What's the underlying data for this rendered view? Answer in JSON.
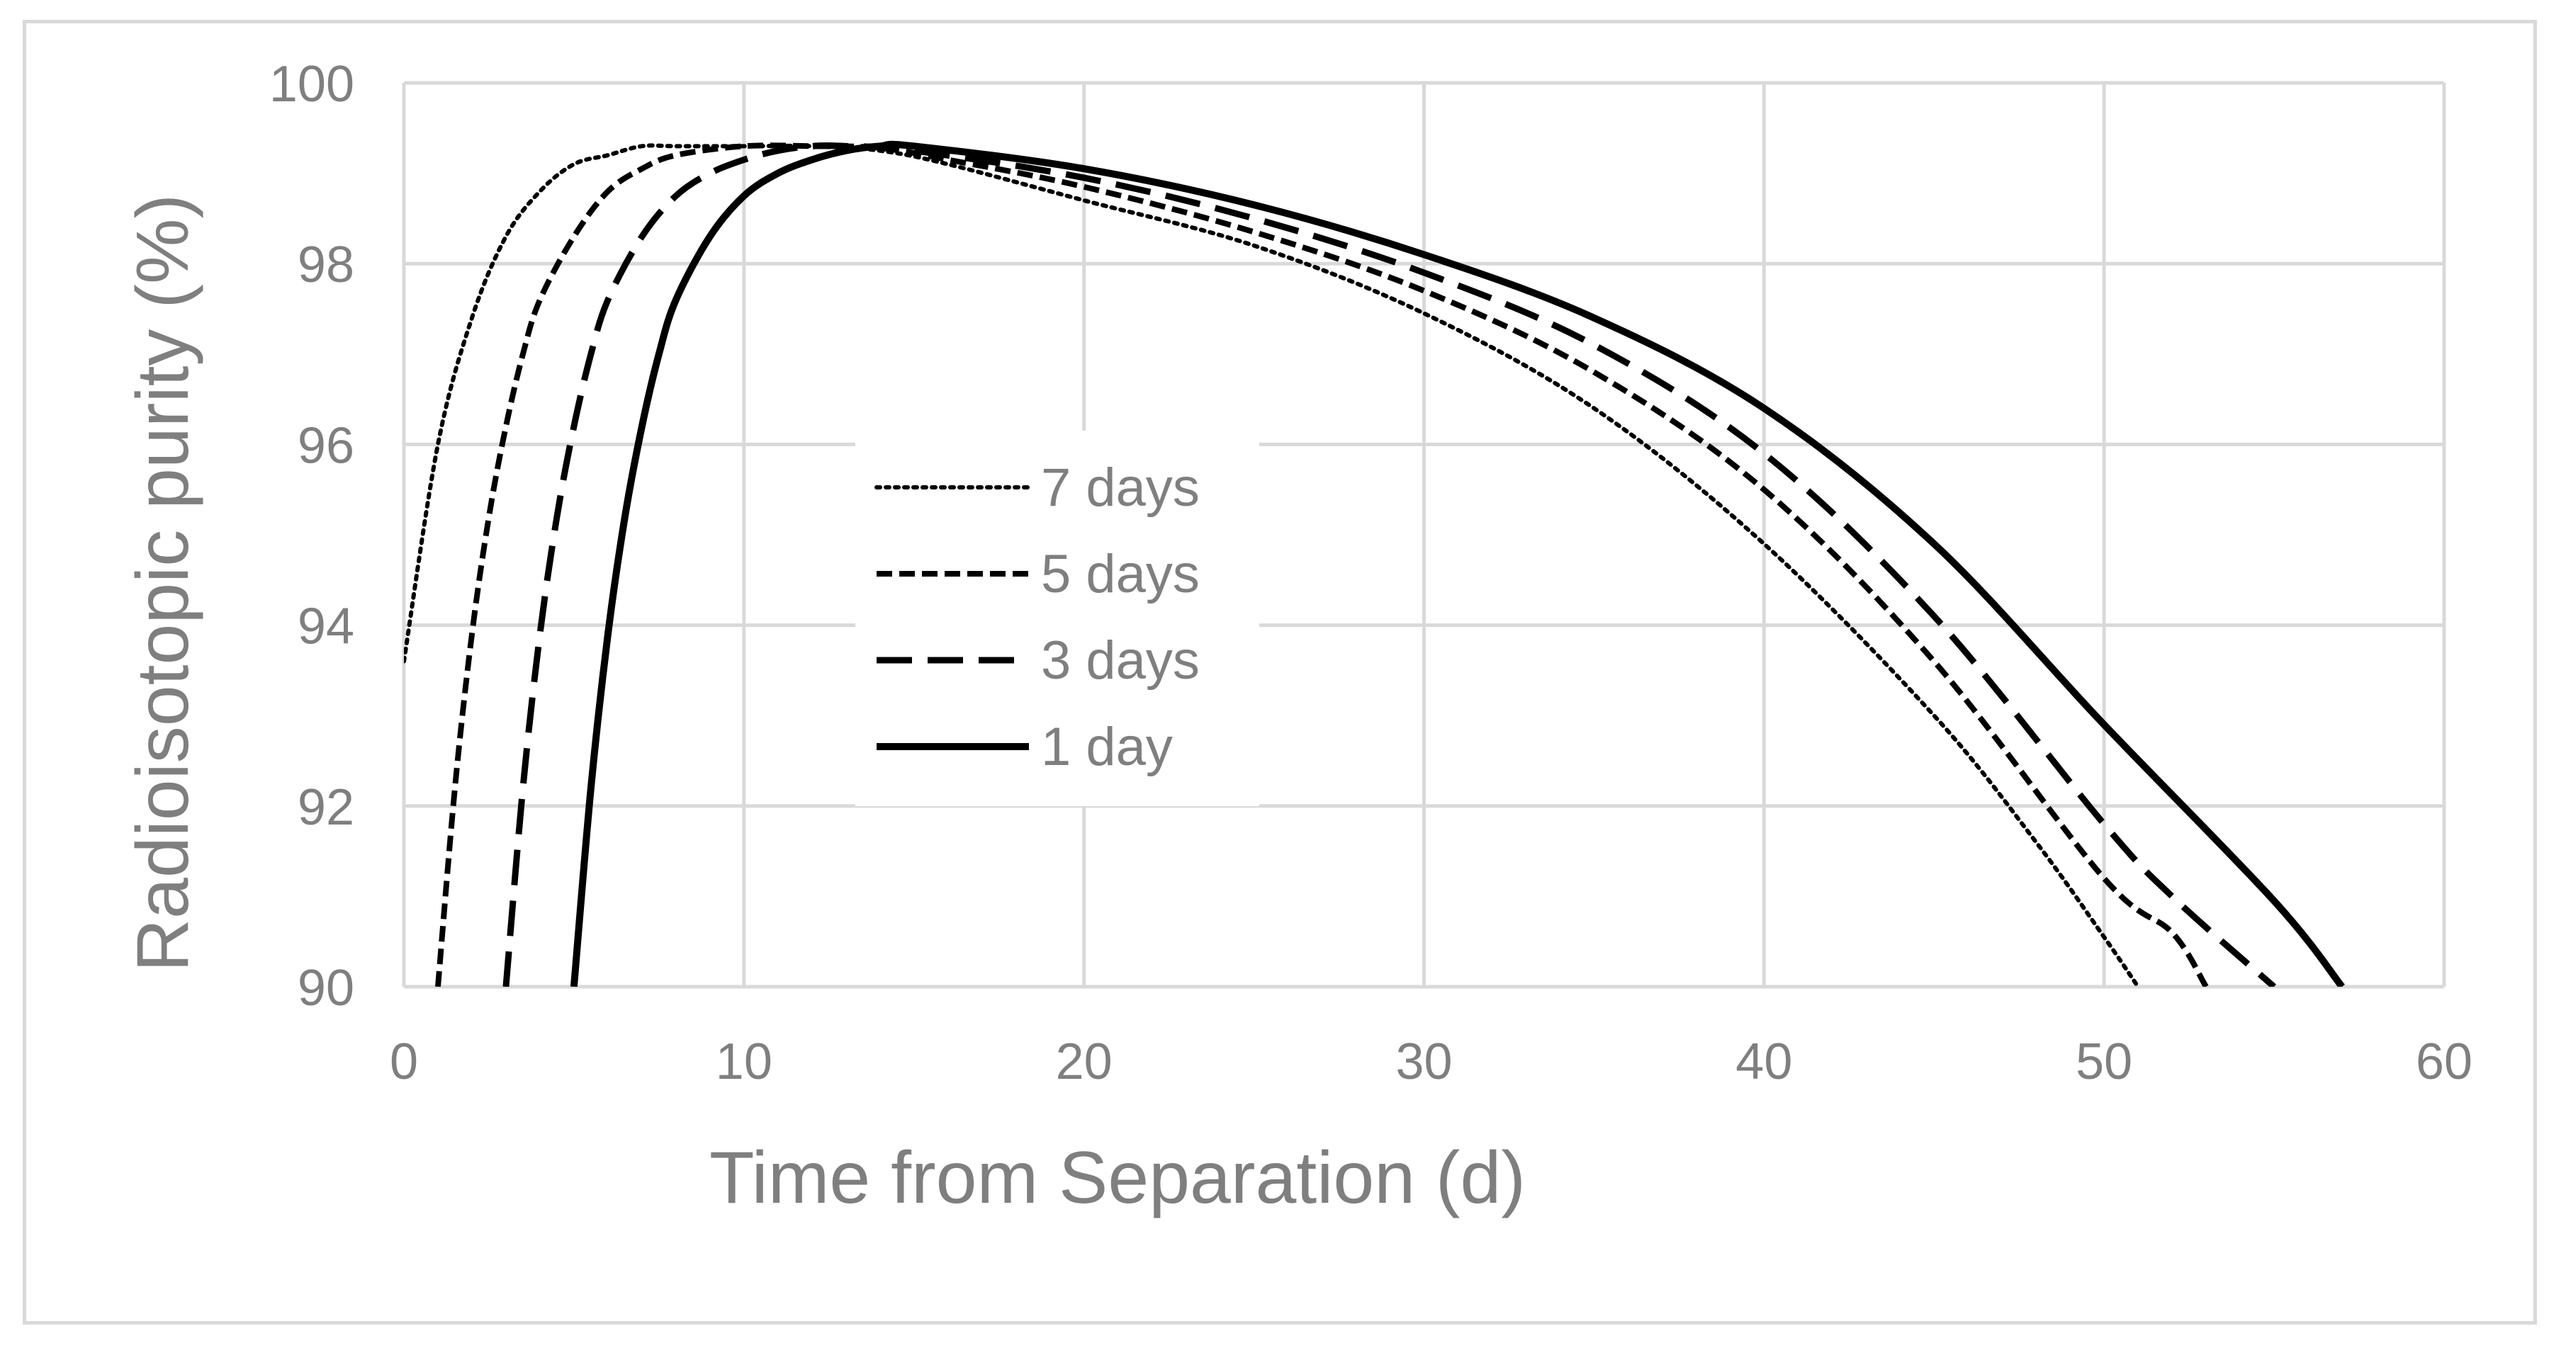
{
  "chart_data": {
    "type": "line",
    "title": "",
    "xlabel": "Time from Separation (d)",
    "ylabel": "Radioisotopic purity (%)",
    "xlim": [
      0,
      60
    ],
    "ylim": [
      90,
      100
    ],
    "xticks": [
      0,
      10,
      20,
      30,
      40,
      50,
      60
    ],
    "yticks": [
      90,
      92,
      94,
      96,
      98,
      100
    ],
    "grid": true,
    "legend_position": "center-left",
    "line_color": "#000000",
    "series": [
      {
        "name": "7 days",
        "dash": "dotted",
        "x": [
          0,
          1,
          2,
          3,
          4,
          5,
          6,
          7,
          8,
          10,
          12,
          14,
          16,
          20,
          25,
          30,
          35,
          40,
          45,
          48,
          50,
          51
        ],
        "y": [
          93.6,
          96.0,
          97.4,
          98.3,
          98.8,
          99.1,
          99.2,
          99.3,
          99.3,
          99.3,
          99.3,
          99.25,
          99.1,
          98.7,
          98.2,
          97.45,
          96.4,
          94.9,
          93.0,
          91.6,
          90.55,
          90.0
        ]
      },
      {
        "name": "5 days",
        "dash": "short-dash",
        "x": [
          1,
          1.5,
          2,
          2.5,
          3,
          3.5,
          4,
          5,
          6,
          7,
          8,
          10,
          12,
          14,
          16,
          20,
          25,
          30,
          35,
          40,
          45,
          50,
          52,
          53
        ],
        "y": [
          90.0,
          92.2,
          93.9,
          95.2,
          96.2,
          97.0,
          97.6,
          98.3,
          98.8,
          99.05,
          99.2,
          99.3,
          99.3,
          99.28,
          99.15,
          98.85,
          98.35,
          97.7,
          96.8,
          95.5,
          93.6,
          91.2,
          90.6,
          90.0
        ]
      },
      {
        "name": "3 days",
        "dash": "long-dash",
        "x": [
          3,
          3.5,
          4,
          4.5,
          5,
          5.5,
          6,
          7,
          8,
          9,
          10,
          11,
          12,
          13,
          15,
          20,
          25,
          30,
          35,
          40,
          45,
          50,
          52,
          55
        ],
        "y": [
          90.0,
          92.2,
          93.9,
          95.2,
          96.2,
          97.0,
          97.6,
          98.3,
          98.75,
          99.0,
          99.15,
          99.25,
          99.3,
          99.3,
          99.25,
          98.95,
          98.5,
          97.9,
          97.1,
          95.9,
          94.1,
          91.8,
          91.0,
          90.0
        ]
      },
      {
        "name": "1 day",
        "dash": "solid",
        "x": [
          5,
          5.5,
          6,
          6.5,
          7,
          7.5,
          8,
          9,
          10,
          11,
          12,
          13,
          14,
          15,
          20,
          25,
          30,
          35,
          40,
          45,
          50,
          55,
          57
        ],
        "y": [
          90.0,
          92.2,
          93.9,
          95.2,
          96.2,
          97.0,
          97.6,
          98.3,
          98.75,
          99.0,
          99.15,
          99.25,
          99.3,
          99.3,
          99.05,
          98.65,
          98.1,
          97.4,
          96.4,
          94.9,
          92.9,
          90.95,
          90.0
        ]
      }
    ]
  }
}
